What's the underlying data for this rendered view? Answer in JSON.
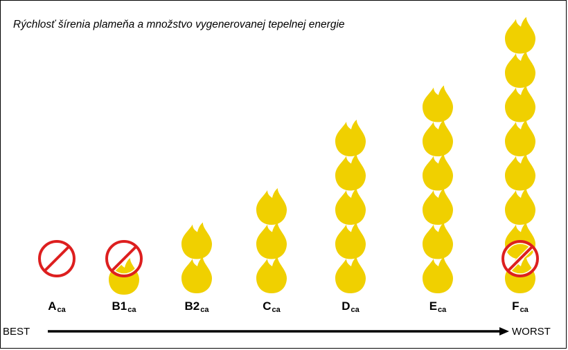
{
  "title": "Rýchlosť šírenia plameňa a množstvo vygenerovanej tepelnej energie",
  "colors": {
    "flame": "#f0d000",
    "prohibit": "#dd1f1f",
    "arrow": "#000000"
  },
  "classes": [
    {
      "main": "A",
      "sub": "ca",
      "flames": 0,
      "prohibited": true
    },
    {
      "main": "B1",
      "sub": "ca",
      "flames": 1,
      "prohibited": true
    },
    {
      "main": "B2",
      "sub": "ca",
      "flames": 2,
      "prohibited": false
    },
    {
      "main": "C",
      "sub": "ca",
      "flames": 3,
      "prohibited": false
    },
    {
      "main": "D",
      "sub": "ca",
      "flames": 5,
      "prohibited": false
    },
    {
      "main": "E",
      "sub": "ca",
      "flames": 6,
      "prohibited": false
    },
    {
      "main": "F",
      "sub": "ca",
      "flames": 8,
      "prohibited": true
    }
  ],
  "scale": {
    "best_label": "BEST",
    "worst_label": "WORST"
  }
}
